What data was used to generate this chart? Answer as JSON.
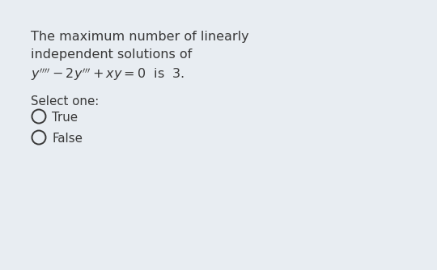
{
  "background_color": "#e8edf2",
  "text_color": "#383838",
  "line1": "The maximum number of linearly",
  "line2": "independent solutions of",
  "select_label": "Select one:",
  "option1": "True",
  "option2": "False",
  "font_size_body": 11.5,
  "font_size_select": 10.8,
  "font_size_option": 10.8,
  "font_size_eq": 11.5
}
